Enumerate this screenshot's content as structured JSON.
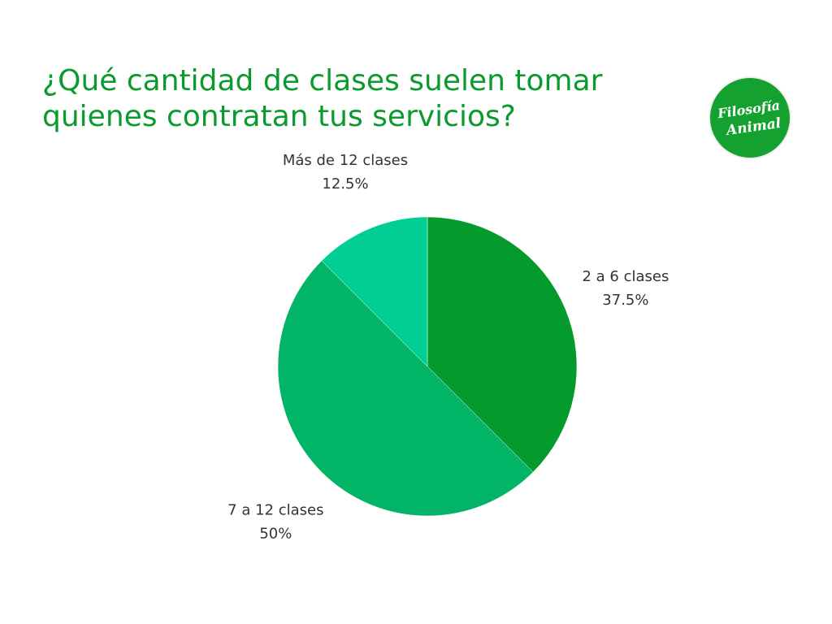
{
  "title_lines": [
    "¿Qué cantidad de clases suelen tomar",
    "quienes contratan tus servicios?"
  ],
  "logo": {
    "text_line1": "Filosofía",
    "text_line2": "Animal",
    "color": "#14a12f"
  },
  "chart_data": {
    "type": "pie",
    "slices": [
      {
        "label": "2 a 6 clases",
        "value": 37.5,
        "display": "37.5%",
        "color": "#049b2c"
      },
      {
        "label": "7 a 12 clases",
        "value": 50,
        "display": "50%",
        "color": "#02b566"
      },
      {
        "label": "Más de 12 clases",
        "value": 12.5,
        "display": "12.5%",
        "color": "#00ce94"
      }
    ],
    "start_angle_deg": 0,
    "direction": "clockwise",
    "legend": "none",
    "labels_position": "outside"
  }
}
